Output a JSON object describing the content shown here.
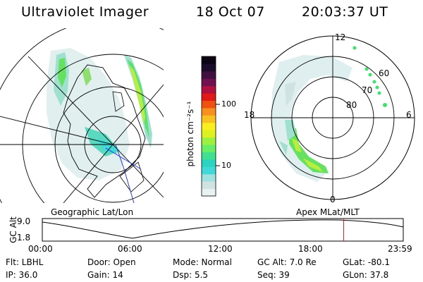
{
  "header": {
    "instrument": "Ultraviolet Imager",
    "date": "18 Oct 07",
    "time": "20:03:37 UT"
  },
  "colorbar": {
    "unit_label": "photon cm⁻²s⁻¹",
    "ticks": [
      "100",
      "10"
    ],
    "colors": [
      "#e8f2f2",
      "#cfe3e3",
      "#9fe0e0",
      "#40d8d8",
      "#2ad4c0",
      "#40e090",
      "#66ee66",
      "#9cf040",
      "#ddf020",
      "#f8ee20",
      "#f8c020",
      "#f89020",
      "#f05010",
      "#e01818",
      "#b01040",
      "#701050",
      "#401040",
      "#1a0c2a",
      "#0c0414"
    ]
  },
  "left_map": {
    "label": "Geographic Lat/Lon"
  },
  "right_map": {
    "label": "Apex  MLat/MLT",
    "mlt_labels": {
      "top": "12",
      "left": "18",
      "right": "6",
      "bottom": "0"
    },
    "lat_labels": [
      "60",
      "70",
      "80"
    ]
  },
  "timeline": {
    "axis_label": "GC Alt",
    "y_ticks": [
      "9.0",
      "1.8"
    ],
    "x_ticks": [
      "00:00",
      "06:00",
      "12:00",
      "18:00",
      "23:59"
    ],
    "current_time_fraction": 0.835,
    "marker_color": "#dd2222"
  },
  "footer": {
    "filter": "Flt: LBHL",
    "door": "Door: Open",
    "mode": "Mode: Normal",
    "gc_alt": "GC Alt: 7.0 Re",
    "glat": "GLat: -80.1",
    "ip": "IP: 36.0",
    "gain": "Gain: 14",
    "dsp": "Dsp:     5.5",
    "seq": "Seq: 39",
    "glon": "GLon:  37.8"
  }
}
